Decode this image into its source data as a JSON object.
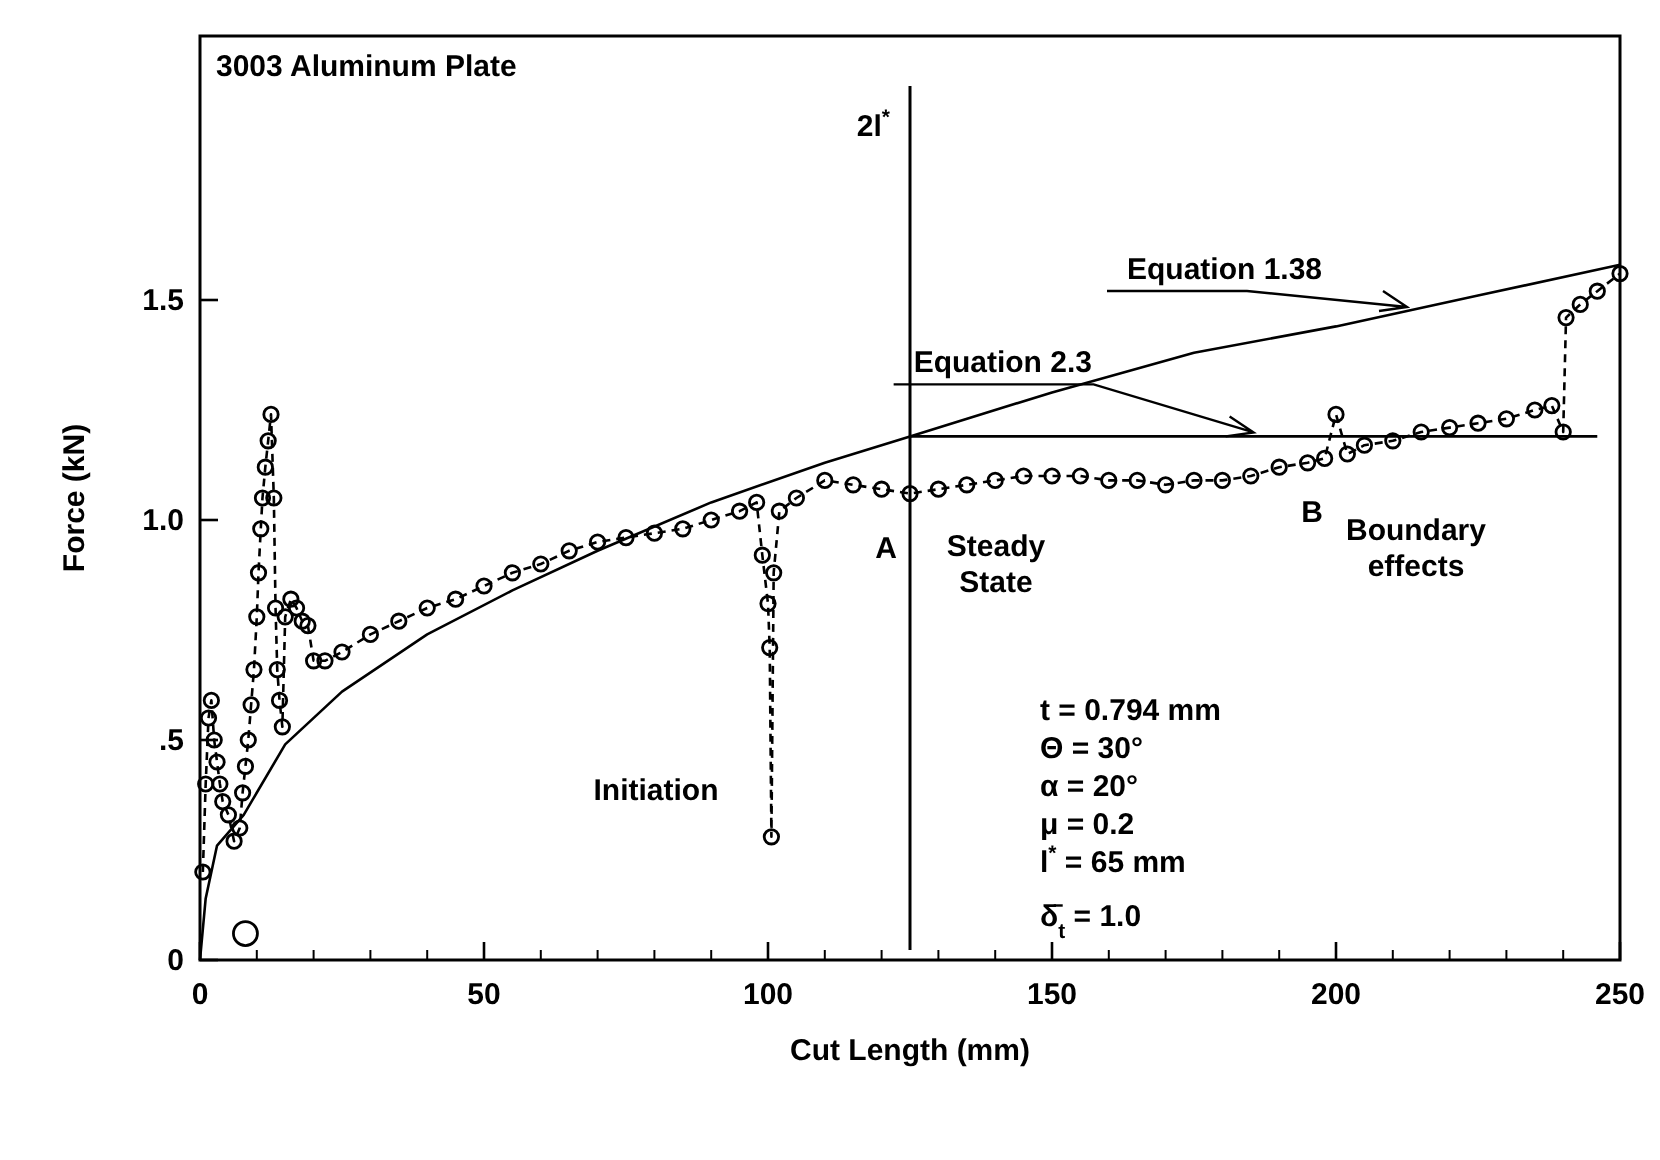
{
  "chart_data": {
    "type": "line",
    "title": "3003 Aluminum Plate",
    "xlabel": "Cut Length (mm)",
    "ylabel": "Force (kN)",
    "xlim": [
      0,
      250
    ],
    "xticks": [
      0,
      50,
      100,
      150,
      200,
      250
    ],
    "ylim": [
      0,
      2.1
    ],
    "yticks": [
      0,
      {
        "value": 0.5,
        "label": ".5"
      },
      {
        "value": 1.0,
        "label": "1.0"
      },
      1.5
    ],
    "grid": false,
    "series": [
      {
        "type": "line",
        "color": "#000000",
        "marker": "circle",
        "line_style": "dashed",
        "x": [
          0.5,
          1,
          1.5,
          2,
          2.5,
          3,
          3.5,
          4,
          5,
          6,
          7,
          7.5,
          8,
          8.5,
          9,
          9.5,
          10,
          10.3,
          10.7,
          11,
          11.5,
          12,
          12.5,
          13,
          13.3,
          13.6,
          14,
          14.5,
          15,
          16,
          17,
          18,
          19,
          20,
          22,
          25,
          30,
          35,
          40,
          45,
          50,
          55,
          60,
          65,
          70,
          75,
          80,
          85,
          90,
          95,
          98,
          99,
          100,
          100.3,
          100.6,
          101,
          102,
          105,
          110,
          115,
          120,
          125,
          130,
          135,
          140,
          145,
          150,
          155,
          160,
          165,
          170,
          175,
          180,
          185,
          190,
          195,
          198,
          200,
          202,
          205,
          210,
          215,
          220,
          225,
          230,
          235,
          238,
          240,
          240.5,
          243,
          246,
          250
        ],
        "values": [
          0.2,
          0.4,
          0.55,
          0.59,
          0.5,
          0.45,
          0.4,
          0.36,
          0.33,
          0.27,
          0.3,
          0.38,
          0.44,
          0.5,
          0.58,
          0.66,
          0.78,
          0.88,
          0.98,
          1.05,
          1.12,
          1.18,
          1.24,
          1.05,
          0.8,
          0.66,
          0.59,
          0.53,
          0.78,
          0.82,
          0.8,
          0.77,
          0.76,
          0.68,
          0.68,
          0.7,
          0.74,
          0.77,
          0.8,
          0.82,
          0.85,
          0.88,
          0.9,
          0.93,
          0.95,
          0.96,
          0.97,
          0.98,
          1.0,
          1.02,
          1.04,
          0.92,
          0.81,
          0.71,
          0.28,
          0.88,
          1.02,
          1.05,
          1.09,
          1.08,
          1.07,
          1.06,
          1.07,
          1.08,
          1.09,
          1.1,
          1.1,
          1.1,
          1.09,
          1.09,
          1.08,
          1.09,
          1.09,
          1.1,
          1.12,
          1.13,
          1.14,
          1.24,
          1.15,
          1.17,
          1.18,
          1.2,
          1.21,
          1.22,
          1.23,
          1.25,
          1.26,
          1.2,
          1.46,
          1.49,
          1.52,
          1.56
        ]
      },
      {
        "type": "scatter",
        "color": "#000000",
        "marker": "circle",
        "x": [
          8
        ],
        "values": [
          0.06
        ]
      },
      {
        "type": "line",
        "name": "Equation 1.38",
        "color": "#000000",
        "marker": "none",
        "line_style": "solid",
        "x": [
          0,
          1,
          3,
          7.7,
          15,
          25,
          40,
          55,
          70,
          90,
          110,
          125,
          150,
          175,
          200,
          225,
          250
        ],
        "values": [
          0,
          0.14,
          0.26,
          0.33,
          0.49,
          0.61,
          0.74,
          0.84,
          0.93,
          1.04,
          1.13,
          1.19,
          1.29,
          1.38,
          1.44,
          1.51,
          1.58
        ]
      },
      {
        "type": "line",
        "name": "Equation 2.3",
        "color": "#000000",
        "marker": "none",
        "line_style": "solid",
        "x": [
          125,
          246
        ],
        "values": [
          1.19,
          1.19
        ]
      }
    ],
    "ref_lines": [
      {
        "axis": "x",
        "value": 125,
        "label": "2l$^{*}$",
        "color": "#000000"
      }
    ],
    "annotations": [
      {
        "text": "A",
        "x": 125,
        "y": 1.06
      },
      {
        "text": "B",
        "x": 200,
        "y": 1.14
      },
      "Steady State",
      "Boundary effects",
      "Initiation",
      "t = 0.794 mm",
      "Θ = 30°",
      "α = 20°",
      "μ = 0.2",
      "l$^{*}$ = 65 mm",
      "δ̄$_{t}$ = 1.0"
    ]
  }
}
